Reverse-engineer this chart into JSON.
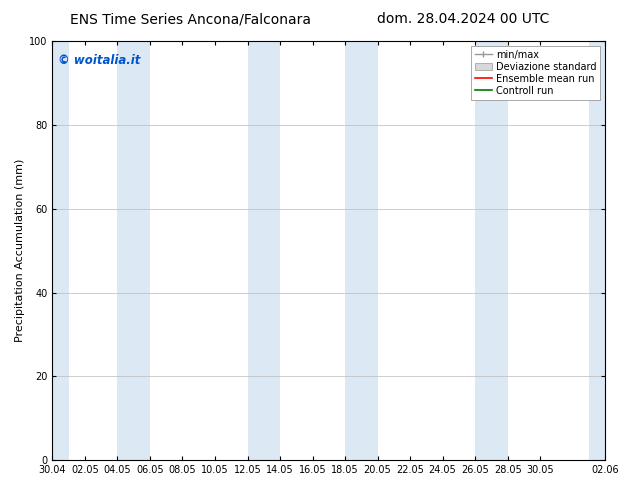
{
  "title_left": "ENS Time Series Ancona/Falconara",
  "title_right": "dom. 28.04.2024 00 UTC",
  "ylabel": "Precipitation Accumulation (mm)",
  "ylim": [
    0,
    100
  ],
  "yticks": [
    0,
    20,
    40,
    60,
    80,
    100
  ],
  "background_color": "#ffffff",
  "plot_bg_color": "#ffffff",
  "band_color": "#dce9f5",
  "watermark_text": "© woitalia.it",
  "watermark_color": "#0055cc",
  "legend_entries": [
    "min/max",
    "Deviazione standard",
    "Ensemble mean run",
    "Controll run"
  ],
  "legend_colors": [
    "#aaaaaa",
    "#cccccc",
    "#ff0000",
    "#007700"
  ],
  "x_start": 0,
  "x_end": 34,
  "xtick_labels": [
    "30.04",
    "02.05",
    "04.05",
    "06.05",
    "08.05",
    "10.05",
    "12.05",
    "14.05",
    "16.05",
    "18.05",
    "20.05",
    "22.05",
    "24.05",
    "26.05",
    "28.05",
    "30.05",
    "02.06"
  ],
  "xtick_positions": [
    0,
    2,
    4,
    6,
    8,
    10,
    12,
    14,
    16,
    18,
    20,
    22,
    24,
    26,
    28,
    30,
    34
  ],
  "shaded_bands": [
    [
      0.0,
      1.0
    ],
    [
      4.0,
      5.0
    ],
    [
      5.0,
      6.0
    ],
    [
      12.0,
      13.0
    ],
    [
      13.0,
      14.0
    ],
    [
      18.0,
      19.0
    ],
    [
      19.0,
      20.0
    ],
    [
      26.0,
      27.0
    ],
    [
      27.0,
      28.0
    ],
    [
      33.0,
      34.0
    ]
  ],
  "title_fontsize": 10,
  "axis_fontsize": 8,
  "tick_fontsize": 7,
  "legend_fontsize": 7
}
